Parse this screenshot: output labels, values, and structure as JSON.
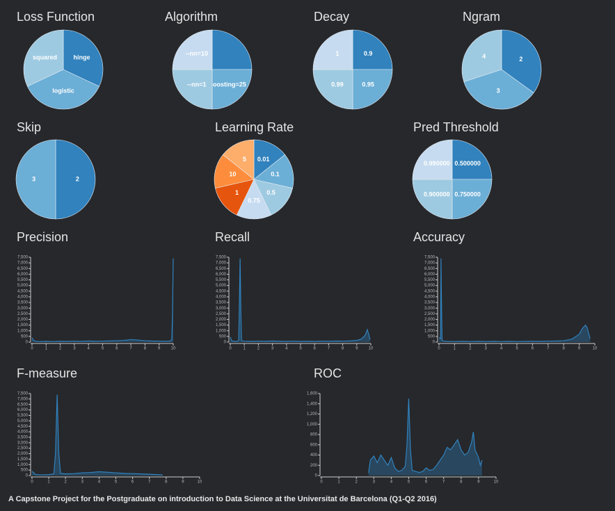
{
  "chart_data": [
    {
      "type": "pie",
      "title": "Loss Function",
      "categories": [
        "hinge",
        "logistic",
        "squared"
      ],
      "values": [
        32,
        36,
        32
      ],
      "colors": [
        "#3182bd",
        "#6baed6",
        "#9ecae1"
      ]
    },
    {
      "type": "pie",
      "title": "Algorithm",
      "categories": [
        null,
        "boosting=25",
        "--nn=1",
        "--nn=10"
      ],
      "values": [
        25,
        25,
        25,
        25
      ],
      "colors": [
        "#3182bd",
        "#6baed6",
        "#9ecae1",
        "#c6dbef"
      ]
    },
    {
      "type": "pie",
      "title": "Decay",
      "categories": [
        "0.9",
        "0.95",
        "0.99",
        "1"
      ],
      "values": [
        25,
        25,
        25,
        25
      ],
      "colors": [
        "#3182bd",
        "#6baed6",
        "#9ecae1",
        "#c6dbef"
      ]
    },
    {
      "type": "pie",
      "title": "Ngram",
      "categories": [
        "2",
        "3",
        "4"
      ],
      "values": [
        35,
        35,
        30
      ],
      "colors": [
        "#3182bd",
        "#6baed6",
        "#9ecae1"
      ]
    },
    {
      "type": "pie",
      "title": "Skip",
      "categories": [
        "2",
        "3"
      ],
      "values": [
        50,
        50
      ],
      "colors": [
        "#3182bd",
        "#6baed6"
      ]
    },
    {
      "type": "pie",
      "title": "Learning Rate",
      "categories": [
        "0.01",
        "0.1",
        "0.5",
        "0.75",
        "1",
        "10",
        "5"
      ],
      "values": [
        14.3,
        14.3,
        14.3,
        14.3,
        14.3,
        14.3,
        14.3
      ],
      "colors": [
        "#3182bd",
        "#6baed6",
        "#9ecae1",
        "#c6dbef",
        "#e6550d",
        "#fd8d3c",
        "#fdae6b"
      ]
    },
    {
      "type": "pie",
      "title": "Pred Threshold",
      "categories": [
        "0.500000",
        "0.750000",
        "0.900000",
        "0.990000"
      ],
      "values": [
        25,
        25,
        25,
        25
      ],
      "colors": [
        "#3182bd",
        "#6baed6",
        "#9ecae1",
        "#c6dbef"
      ]
    },
    {
      "type": "line",
      "title": "Precision",
      "color": "#3182bd",
      "area": true,
      "x": [
        0,
        0.1,
        0.3,
        0.5,
        1,
        1.5,
        2,
        2.5,
        3,
        3.5,
        4,
        4.5,
        5,
        5.5,
        6,
        6.5,
        7,
        7.5,
        8,
        8.5,
        9,
        9.5,
        9.8,
        9.9,
        9.95,
        10
      ],
      "values": [
        400,
        150,
        60,
        50,
        60,
        50,
        70,
        60,
        80,
        60,
        90,
        70,
        80,
        100,
        120,
        150,
        220,
        180,
        120,
        90,
        80,
        70,
        90,
        250,
        2500,
        7400
      ],
      "xlim": [
        0,
        10
      ],
      "xticks": [
        0,
        1,
        2,
        3,
        4,
        5,
        6,
        7,
        8,
        9,
        10
      ],
      "ylim": [
        0,
        7500
      ],
      "yticks": [
        0,
        500,
        {
          "value": 1000,
          "label": "1,000"
        },
        {
          "value": 1500,
          "label": "1,500"
        },
        {
          "value": 2000,
          "label": "2,000"
        },
        {
          "value": 2500,
          "label": "2,500"
        },
        {
          "value": 3000,
          "label": "3,000"
        },
        {
          "value": 3500,
          "label": "3,500"
        },
        {
          "value": 4000,
          "label": "4,000"
        },
        {
          "value": 4500,
          "label": "4,500"
        },
        {
          "value": 5000,
          "label": "5,000"
        },
        {
          "value": 5500,
          "label": "5,500"
        },
        {
          "value": 6000,
          "label": "6,000"
        },
        {
          "value": 6500,
          "label": "6,500"
        },
        {
          "value": 7000,
          "label": "7,000"
        },
        {
          "value": 7500,
          "label": "7,500"
        }
      ]
    },
    {
      "type": "line",
      "title": "Recall",
      "color": "#3182bd",
      "area": true,
      "x": [
        0,
        0.1,
        0.3,
        0.5,
        0.6,
        0.65,
        0.7,
        0.75,
        0.8,
        0.9,
        1.5,
        2,
        2.5,
        3,
        3.5,
        4,
        4.5,
        5,
        5.5,
        6,
        6.5,
        7,
        7.5,
        8,
        8.5,
        9,
        9.3,
        9.6,
        9.75,
        9.85,
        9.95
      ],
      "values": [
        450,
        100,
        60,
        60,
        150,
        3500,
        7400,
        3000,
        150,
        80,
        60,
        80,
        70,
        90,
        70,
        60,
        80,
        60,
        70,
        60,
        80,
        70,
        90,
        80,
        100,
        150,
        250,
        600,
        1100,
        700,
        200
      ],
      "xlim": [
        0,
        10
      ],
      "xticks": [
        0,
        1,
        2,
        3,
        4,
        5,
        6,
        7,
        8,
        9,
        10
      ],
      "ylim": [
        0,
        7500
      ],
      "yticks": [
        0,
        500,
        {
          "value": 1000,
          "label": "1,000"
        },
        {
          "value": 1500,
          "label": "1,500"
        },
        {
          "value": 2000,
          "label": "2,000"
        },
        {
          "value": 2500,
          "label": "2,500"
        },
        {
          "value": 3000,
          "label": "3,000"
        },
        {
          "value": 3500,
          "label": "3,500"
        },
        {
          "value": 4000,
          "label": "4,000"
        },
        {
          "value": 4500,
          "label": "4,500"
        },
        {
          "value": 5000,
          "label": "5,000"
        },
        {
          "value": 5500,
          "label": "5,500"
        },
        {
          "value": 6000,
          "label": "6,000"
        },
        {
          "value": 6500,
          "label": "6,500"
        },
        {
          "value": 7000,
          "label": "7,000"
        },
        {
          "value": 7500,
          "label": "7,500"
        }
      ]
    },
    {
      "type": "line",
      "title": "Accuracy",
      "color": "#3182bd",
      "area": true,
      "x": [
        0,
        0.1,
        0.13,
        0.16,
        0.2,
        0.3,
        0.5,
        1,
        1.5,
        2,
        2.5,
        3,
        3.5,
        4,
        4.5,
        5,
        5.5,
        6,
        6.5,
        7,
        7.5,
        8,
        8.5,
        8.8,
        9,
        9.2,
        9.4,
        9.5,
        9.6,
        9.7
      ],
      "values": [
        400,
        300,
        7400,
        3500,
        150,
        80,
        60,
        50,
        60,
        50,
        60,
        50,
        60,
        50,
        60,
        50,
        60,
        70,
        60,
        80,
        90,
        120,
        250,
        500,
        700,
        1200,
        1500,
        1300,
        800,
        300
      ],
      "xlim": [
        0,
        10
      ],
      "xticks": [
        0,
        1,
        2,
        3,
        4,
        5,
        6,
        7,
        8,
        9,
        10
      ],
      "ylim": [
        0,
        7500
      ],
      "yticks": [
        0,
        500,
        {
          "value": 1000,
          "label": "1,000"
        },
        {
          "value": 1500,
          "label": "1,500"
        },
        {
          "value": 2000,
          "label": "2,000"
        },
        {
          "value": 2500,
          "label": "2,500"
        },
        {
          "value": 3000,
          "label": "3,000"
        },
        {
          "value": 3500,
          "label": "3,500"
        },
        {
          "value": 4000,
          "label": "4,000"
        },
        {
          "value": 4500,
          "label": "4,500"
        },
        {
          "value": 5000,
          "label": "5,000"
        },
        {
          "value": 5500,
          "label": "5,500"
        },
        {
          "value": 6000,
          "label": "6,000"
        },
        {
          "value": 6500,
          "label": "6,500"
        },
        {
          "value": 7000,
          "label": "7,000"
        },
        {
          "value": 7500,
          "label": "7,500"
        }
      ]
    },
    {
      "type": "line",
      "title": "F-measure",
      "color": "#3182bd",
      "area": true,
      "x": [
        0,
        0.2,
        0.5,
        1,
        1.3,
        1.4,
        1.5,
        1.6,
        1.7,
        2,
        2.5,
        3,
        3.5,
        4,
        4.5,
        5,
        5.5,
        6,
        6.5,
        7,
        7.5,
        7.8
      ],
      "values": [
        400,
        100,
        60,
        80,
        150,
        2000,
        7400,
        2000,
        200,
        150,
        180,
        250,
        280,
        350,
        300,
        250,
        200,
        180,
        150,
        120,
        80,
        60
      ],
      "xlim": [
        0,
        10
      ],
      "xticks": [
        0,
        1,
        2,
        3,
        4,
        5,
        6,
        7,
        8,
        9,
        10
      ],
      "ylim": [
        0,
        7500
      ],
      "yticks": [
        0,
        500,
        {
          "value": 1000,
          "label": "1,000"
        },
        {
          "value": 1500,
          "label": "1,500"
        },
        {
          "value": 2000,
          "label": "2,000"
        },
        {
          "value": 2500,
          "label": "2,500"
        },
        {
          "value": 3000,
          "label": "3,000"
        },
        {
          "value": 3500,
          "label": "3,500"
        },
        {
          "value": 4000,
          "label": "4,000"
        },
        {
          "value": 4500,
          "label": "4,500"
        },
        {
          "value": 5000,
          "label": "5,000"
        },
        {
          "value": 5500,
          "label": "5,500"
        },
        {
          "value": 6000,
          "label": "6,000"
        },
        {
          "value": 6500,
          "label": "6,500"
        },
        {
          "value": 7000,
          "label": "7,000"
        },
        {
          "value": 7500,
          "label": "7,500"
        }
      ]
    },
    {
      "type": "line",
      "title": "ROC",
      "color": "#3182bd",
      "area": true,
      "x": [
        2.7,
        2.8,
        3,
        3.2,
        3.4,
        3.6,
        3.8,
        4,
        4.2,
        4.4,
        4.6,
        4.8,
        4.9,
        5,
        5.1,
        5.2,
        5.4,
        5.6,
        5.8,
        6,
        6.2,
        6.4,
        6.6,
        6.8,
        7,
        7.2,
        7.4,
        7.6,
        7.8,
        8,
        8.2,
        8.4,
        8.6,
        8.7,
        8.8,
        9,
        9.1,
        9.2
      ],
      "values": [
        50,
        300,
        380,
        250,
        400,
        300,
        200,
        350,
        150,
        80,
        100,
        180,
        600,
        1500,
        500,
        100,
        80,
        60,
        80,
        150,
        100,
        120,
        200,
        300,
        400,
        550,
        500,
        600,
        700,
        500,
        400,
        450,
        650,
        850,
        500,
        350,
        200,
        300
      ],
      "xlim": [
        0,
        10
      ],
      "xticks": [
        0,
        1,
        2,
        3,
        4,
        5,
        6,
        7,
        8,
        9,
        10
      ],
      "ylim": [
        0,
        1600
      ],
      "yticks": [
        0,
        200,
        400,
        600,
        800,
        {
          "value": 1000,
          "label": "1,000"
        },
        {
          "value": 1200,
          "label": "1,200"
        },
        {
          "value": 1400,
          "label": "1,400"
        },
        {
          "value": 1600,
          "label": "1,600"
        }
      ]
    }
  ],
  "footer": "A Capstone Project for the Postgraduate on introduction to Data Science at the Universitat de Barcelona (Q1-Q2 2016)"
}
